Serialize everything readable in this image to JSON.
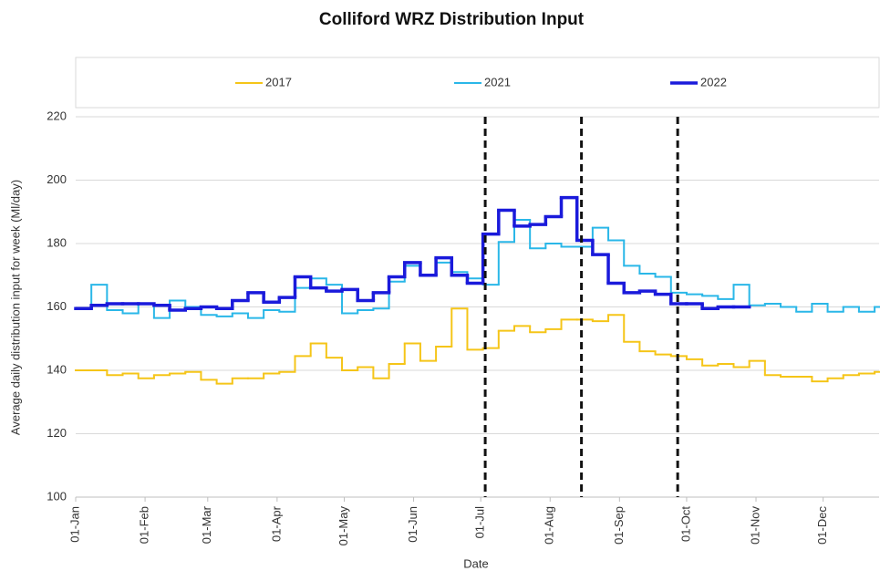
{
  "chart_data": {
    "type": "line",
    "step": true,
    "title": "Colliford WRZ Distribution Input",
    "x_label": "Date",
    "y_label": "Average daily distribution input for week (Ml/day)",
    "xlim": [
      0,
      359
    ],
    "ylim": [
      100,
      220
    ],
    "xticks": [
      {
        "value": 0,
        "label": "01-Jan"
      },
      {
        "value": 31,
        "label": "01-Feb"
      },
      {
        "value": 59,
        "label": "01-Mar"
      },
      {
        "value": 90,
        "label": "01-Apr"
      },
      {
        "value": 120,
        "label": "01-May"
      },
      {
        "value": 151,
        "label": "01-Jun"
      },
      {
        "value": 181,
        "label": "01-Jul"
      },
      {
        "value": 212,
        "label": "01-Aug"
      },
      {
        "value": 243,
        "label": "01-Sep"
      },
      {
        "value": 273,
        "label": "01-Oct"
      },
      {
        "value": 304,
        "label": "01-Nov"
      },
      {
        "value": 334,
        "label": "01-Dec"
      }
    ],
    "yticks": [
      100,
      120,
      140,
      160,
      180,
      200,
      220
    ],
    "grid": true,
    "legend": "top",
    "vlines": [
      183,
      226,
      269
    ],
    "x": [
      0,
      7,
      14,
      21,
      28,
      35,
      42,
      49,
      56,
      63,
      70,
      77,
      84,
      91,
      98,
      105,
      112,
      119,
      126,
      133,
      140,
      147,
      154,
      161,
      168,
      175,
      182,
      189,
      196,
      203,
      210,
      217,
      224,
      231,
      238,
      245,
      252,
      259,
      266,
      273,
      280,
      287,
      294,
      301,
      308,
      315,
      322,
      329,
      336,
      343,
      350,
      357
    ],
    "series": [
      {
        "name": "2017",
        "color": "#f5c518",
        "width": 2,
        "values": [
          140,
          140,
          138.5,
          139,
          137.5,
          138.5,
          139,
          139.5,
          137,
          135.8,
          137.5,
          137.5,
          139,
          139.5,
          144.5,
          148.5,
          144,
          140,
          141,
          137.5,
          142,
          148.5,
          143,
          147.5,
          159.5,
          146.5,
          147,
          152.5,
          154,
          152,
          153,
          156,
          156,
          155.5,
          157.5,
          149,
          146,
          145,
          144.5,
          143.5,
          141.5,
          142,
          141,
          143,
          138.5,
          138,
          138,
          136.5,
          137.5,
          138.5,
          139,
          139.5
        ]
      },
      {
        "name": "2021",
        "color": "#2ab7e8",
        "width": 2,
        "values": [
          159.5,
          167,
          159,
          158,
          161,
          156.5,
          162,
          160,
          157.5,
          157,
          158,
          156.5,
          159,
          158.5,
          166,
          169,
          167,
          158,
          159,
          159.5,
          168,
          173,
          170,
          174,
          171,
          169,
          167,
          180.5,
          187.5,
          178.5,
          180,
          179,
          179,
          185,
          181,
          173,
          170.5,
          169.5,
          164.5,
          164,
          163.5,
          162.5,
          167,
          160.5,
          161,
          160,
          158.5,
          161,
          158.5,
          160,
          158.5,
          160
        ]
      },
      {
        "name": "2022",
        "color": "#1a1adb",
        "width": 3.5,
        "values": [
          159.5,
          160.5,
          161,
          161,
          161,
          160.5,
          159,
          159.5,
          160,
          159.5,
          162,
          164.5,
          161.5,
          163,
          169.5,
          166,
          165,
          165.5,
          162,
          164.5,
          169.5,
          174,
          170,
          175.5,
          170,
          167.5,
          183,
          190.5,
          185.5,
          186,
          188.5,
          194.5,
          181,
          176.5,
          167.5,
          164.5,
          165,
          164,
          161,
          161,
          159.5,
          160,
          160,
          null,
          null,
          null,
          null,
          null,
          null,
          null,
          null,
          null
        ]
      }
    ]
  }
}
